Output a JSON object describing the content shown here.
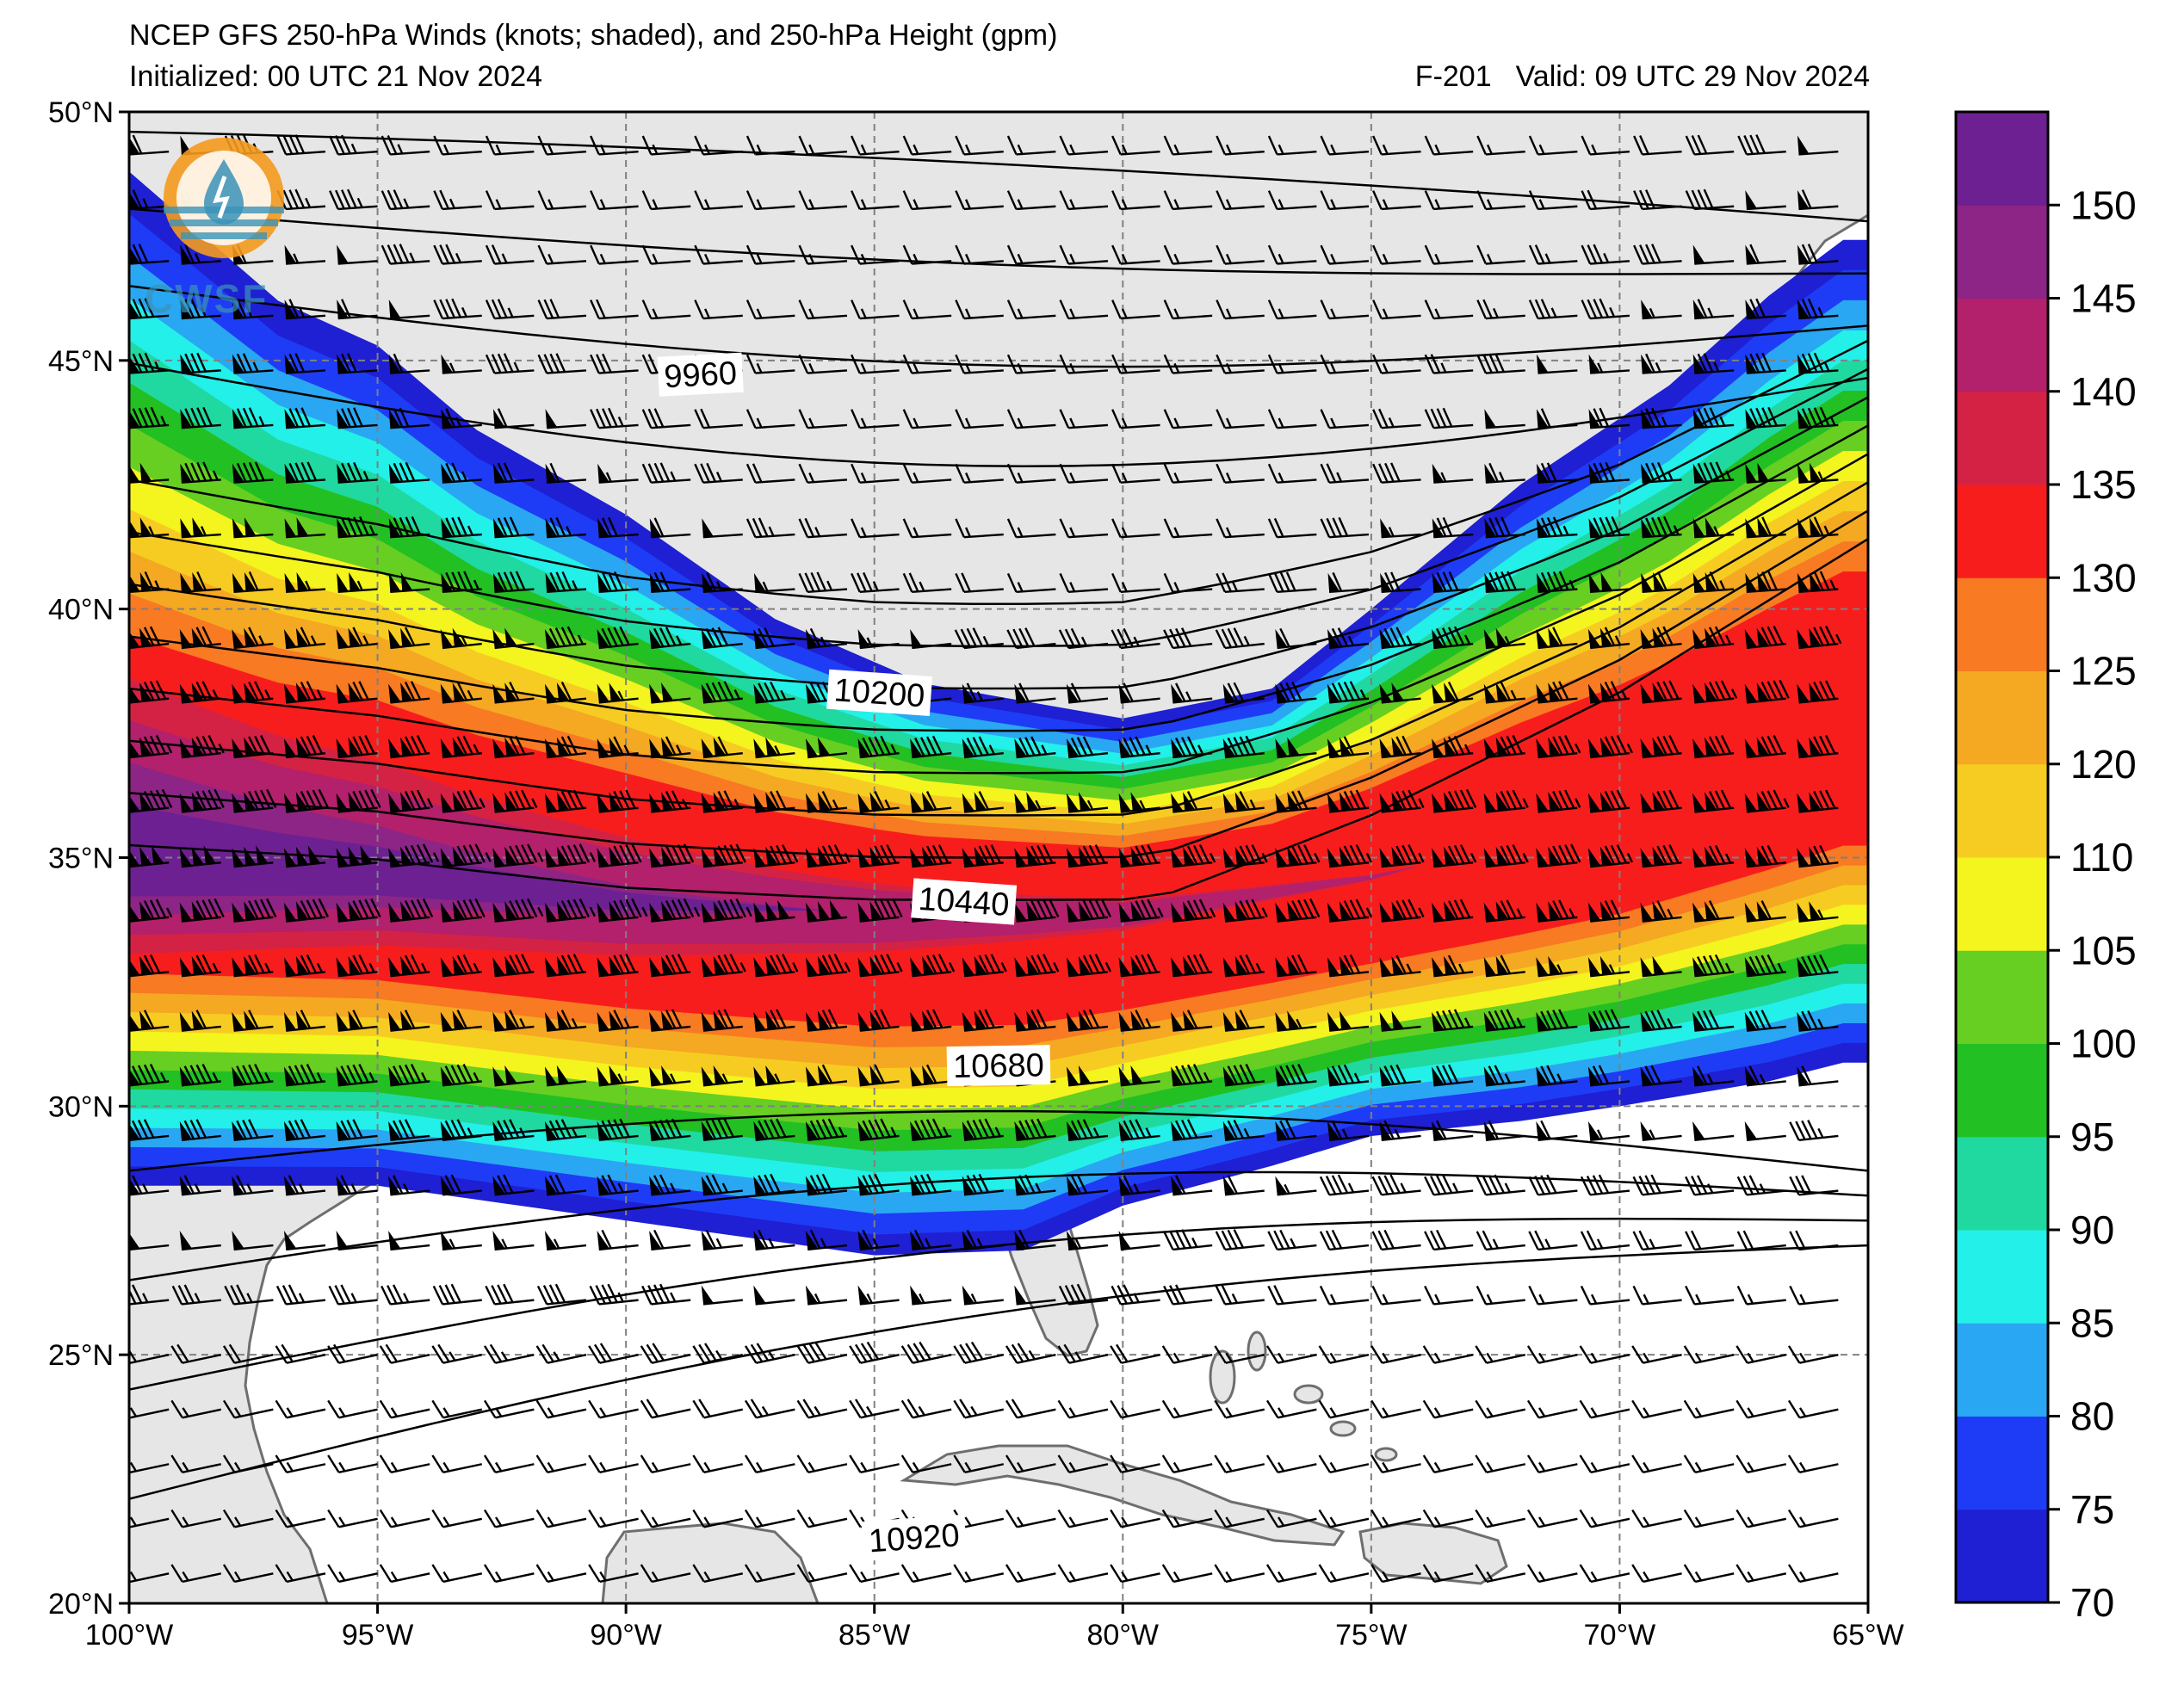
{
  "header": {
    "title": "NCEP GFS 250-hPa Winds (knots; shaded), and 250-hPa Height (gpm)",
    "initialized": "Initialized: 00 UTC 21 Nov 2024",
    "forecast_hour": "F-201",
    "valid": "Valid: 09 UTC 29 Nov 2024"
  },
  "logo": {
    "text": "CWSF",
    "icon": "cwsf-droplet-logo-icon"
  },
  "map": {
    "lon_range": [
      -100,
      -65
    ],
    "lat_range": [
      20,
      50
    ],
    "lon_ticks": [
      {
        "value": -100,
        "label": "100°W"
      },
      {
        "value": -95,
        "label": "95°W"
      },
      {
        "value": -90,
        "label": "90°W"
      },
      {
        "value": -85,
        "label": "85°W"
      },
      {
        "value": -80,
        "label": "80°W"
      },
      {
        "value": -75,
        "label": "75°W"
      },
      {
        "value": -70,
        "label": "70°W"
      },
      {
        "value": -65,
        "label": "65°W"
      }
    ],
    "lat_ticks": [
      {
        "value": 20,
        "label": "20°N"
      },
      {
        "value": 25,
        "label": "25°N"
      },
      {
        "value": 30,
        "label": "30°N"
      },
      {
        "value": 35,
        "label": "35°N"
      },
      {
        "value": 40,
        "label": "40°N"
      },
      {
        "value": 45,
        "label": "45°N"
      },
      {
        "value": 50,
        "label": "50°N"
      }
    ],
    "grid": true,
    "land_color": "#e6e6e6",
    "ocean_color": "#ffffff",
    "coast_color": "#6e6e6e"
  },
  "wind_jet": {
    "units": "knots",
    "core_axis_latlon": [
      [
        -100,
        34.8
      ],
      [
        -95,
        34.6
      ],
      [
        -90,
        34.1
      ],
      [
        -85,
        33.9
      ],
      [
        -80,
        33.9
      ],
      [
        -75,
        34.6
      ],
      [
        -70,
        35.8
      ],
      [
        -65,
        37.6
      ]
    ],
    "north_edge_70kt_latlon": [
      [
        -100,
        48.8
      ],
      [
        -97,
        46.2
      ],
      [
        -95,
        45.3
      ],
      [
        -93,
        43.6
      ],
      [
        -90,
        41.9
      ],
      [
        -87,
        39.8
      ],
      [
        -84,
        38.5
      ],
      [
        -80,
        37.8
      ],
      [
        -77,
        38.4
      ],
      [
        -75,
        40.0
      ],
      [
        -72,
        42.5
      ],
      [
        -69,
        44.5
      ],
      [
        -67,
        46.3
      ],
      [
        -65,
        47.8
      ]
    ],
    "south_edge_70kt_latlon": [
      [
        -100,
        28.4
      ],
      [
        -95,
        28.4
      ],
      [
        -90,
        27.7
      ],
      [
        -85,
        27.0
      ],
      [
        -82,
        27.1
      ],
      [
        -80,
        28.0
      ],
      [
        -77,
        28.8
      ],
      [
        -75,
        29.4
      ],
      [
        -72,
        29.7
      ],
      [
        -70,
        30.0
      ],
      [
        -67,
        30.5
      ],
      [
        -65,
        31.0
      ]
    ]
  },
  "height_contours": {
    "units": "gpm",
    "labels": [
      {
        "text": "9960",
        "lon": -88.5,
        "lat": 44.7,
        "angle": -3
      },
      {
        "text": "10200",
        "lon": -84.9,
        "lat": 38.3,
        "angle": 4
      },
      {
        "text": "10440",
        "lon": -83.2,
        "lat": 34.1,
        "angle": 4
      },
      {
        "text": "10680",
        "lon": -82.5,
        "lat": 30.8,
        "angle": -1
      },
      {
        "text": "10920",
        "lon": -84.2,
        "lat": 21.3,
        "angle": -4
      }
    ]
  },
  "colorbar": {
    "levels": [
      70,
      75,
      80,
      85,
      90,
      95,
      100,
      105,
      110,
      120,
      125,
      130,
      135,
      140,
      145,
      150,
      155
    ],
    "colors": [
      "#1f1fd3",
      "#1e3cf5",
      "#2aa7f2",
      "#23f0e8",
      "#1fd9a0",
      "#22c023",
      "#66cf22",
      "#f4f41f",
      "#f7cc22",
      "#f5a822",
      "#f87a22",
      "#f81d1d",
      "#d42244",
      "#b3206b",
      "#8c2585",
      "#6d2091"
    ],
    "tick_labels": [
      "70",
      "75",
      "80",
      "85",
      "90",
      "95",
      "100",
      "105",
      "110",
      "120",
      "125",
      "130",
      "135",
      "140",
      "145",
      "150"
    ]
  }
}
